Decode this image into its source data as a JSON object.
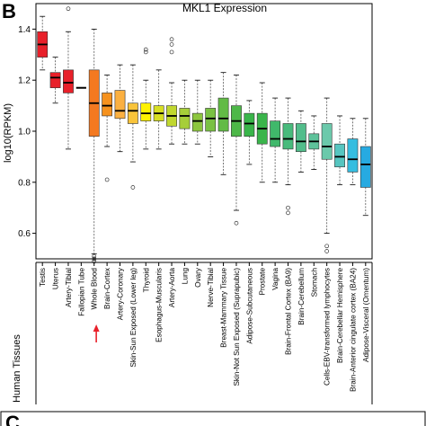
{
  "panel_letter": "B",
  "next_panel_letter": "C",
  "row_label": "Human Tissues",
  "chart_data": {
    "type": "boxplot",
    "title": "MKL1 Expression",
    "ylabel": "log10(RPKM)",
    "xlabel": "",
    "ylim": [
      0.5,
      1.5
    ],
    "yticks": [
      0.6,
      0.8,
      1.0,
      1.2,
      1.4
    ],
    "grid": false,
    "legend": "none",
    "categories": [
      "Testis",
      "Uterus",
      "Artery-Tibial",
      "Fallopian Tube",
      "Whole Blood",
      "Brain-Cortex",
      "Artery-Coronary",
      "Skin-Sun Exposed (Lower leg)",
      "Thyroid",
      "Esophagus-Muscularis",
      "Artery-Aorta",
      "Lung",
      "Ovary",
      "Nerve-Tibial",
      "Breast-Mammary Tissue",
      "Skin-Not Sun Exposed (Suprapubic)",
      "Adipose-Subcutaneous",
      "Prostate",
      "Vagina",
      "Brain-Frontal Cortex (BA9)",
      "Brain-Cerebellum",
      "Stomach",
      "Cells-EBV-transformed lymphocytes",
      "Brain-Cerebellar Hemisphere",
      "Brain-Anterior cingulate cortex (BA24)",
      "Adipose-Visceral (Omentum)"
    ],
    "boxes": [
      {
        "min": 1.24,
        "q1": 1.29,
        "median": 1.34,
        "q3": 1.39,
        "max": 1.45,
        "outliers": [],
        "color": "#e8202a"
      },
      {
        "min": 1.11,
        "q1": 1.17,
        "median": 1.21,
        "q3": 1.23,
        "max": 1.29,
        "outliers": [],
        "color": "#e8202a"
      },
      {
        "min": 0.93,
        "q1": 1.15,
        "median": 1.19,
        "q3": 1.24,
        "max": 1.39,
        "outliers": [
          1.48
        ],
        "color": "#e8202a"
      },
      {
        "min": null,
        "q1": null,
        "median": 1.17,
        "q3": null,
        "max": null,
        "outliers": [],
        "color": "#000000"
      },
      {
        "min": 0.52,
        "q1": 0.98,
        "median": 1.11,
        "q3": 1.24,
        "max": 1.4,
        "outliers": [
          0.51,
          0.5,
          0.49,
          0.5,
          0.5
        ],
        "color": "#f47920"
      },
      {
        "min": 0.94,
        "q1": 1.06,
        "median": 1.1,
        "q3": 1.15,
        "max": 1.22,
        "outliers": [
          0.81
        ],
        "color": "#f6921e"
      },
      {
        "min": 0.92,
        "q1": 1.05,
        "median": 1.08,
        "q3": 1.16,
        "max": 1.26,
        "outliers": [],
        "color": "#fbb040"
      },
      {
        "min": 0.88,
        "q1": 1.03,
        "median": 1.08,
        "q3": 1.11,
        "max": 1.26,
        "outliers": [
          0.78
        ],
        "color": "#f9c43a"
      },
      {
        "min": 0.93,
        "q1": 1.04,
        "median": 1.07,
        "q3": 1.11,
        "max": 1.2,
        "outliers": [
          1.32,
          1.31
        ],
        "color": "#fff200"
      },
      {
        "min": 0.93,
        "q1": 1.04,
        "median": 1.07,
        "q3": 1.1,
        "max": 1.24,
        "outliers": [],
        "color": "#d7df23"
      },
      {
        "min": 0.95,
        "q1": 1.02,
        "median": 1.06,
        "q3": 1.1,
        "max": 1.19,
        "outliers": [
          1.36,
          1.34,
          1.31
        ],
        "color": "#c0d72f"
      },
      {
        "min": 0.95,
        "q1": 1.01,
        "median": 1.06,
        "q3": 1.09,
        "max": 1.2,
        "outliers": [],
        "color": "#a6ce39"
      },
      {
        "min": 0.95,
        "q1": 1.0,
        "median": 1.04,
        "q3": 1.07,
        "max": 1.2,
        "outliers": [],
        "color": "#8dc63f"
      },
      {
        "min": 0.9,
        "q1": 1.0,
        "median": 1.05,
        "q3": 1.09,
        "max": 1.2,
        "outliers": [],
        "color": "#7ac143"
      },
      {
        "min": 0.83,
        "q1": 1.0,
        "median": 1.05,
        "q3": 1.13,
        "max": 1.23,
        "outliers": [],
        "color": "#62bb46"
      },
      {
        "min": 0.69,
        "q1": 0.98,
        "median": 1.04,
        "q3": 1.1,
        "max": 1.22,
        "outliers": [
          0.64
        ],
        "color": "#4db848"
      },
      {
        "min": 0.87,
        "q1": 0.98,
        "median": 1.03,
        "q3": 1.07,
        "max": 1.12,
        "outliers": [],
        "color": "#39b54a"
      },
      {
        "min": 0.8,
        "q1": 0.95,
        "median": 1.01,
        "q3": 1.07,
        "max": 1.19,
        "outliers": [],
        "color": "#3ab54b"
      },
      {
        "min": 0.8,
        "q1": 0.94,
        "median": 0.97,
        "q3": 1.04,
        "max": 1.13,
        "outliers": [],
        "color": "#40b86b"
      },
      {
        "min": 0.79,
        "q1": 0.93,
        "median": 0.97,
        "q3": 1.03,
        "max": 1.13,
        "outliers": [
          0.7,
          0.68
        ],
        "color": "#48bb7c"
      },
      {
        "min": 0.84,
        "q1": 0.92,
        "median": 0.96,
        "q3": 1.03,
        "max": 1.08,
        "outliers": [],
        "color": "#52bd8b"
      },
      {
        "min": 0.85,
        "q1": 0.93,
        "median": 0.96,
        "q3": 0.99,
        "max": 1.06,
        "outliers": [],
        "color": "#5ec29a"
      },
      {
        "min": 0.6,
        "q1": 0.89,
        "median": 0.94,
        "q3": 1.03,
        "max": 1.13,
        "outliers": [
          0.55,
          0.53
        ],
        "color": "#6bc9ab"
      },
      {
        "min": 0.79,
        "q1": 0.86,
        "median": 0.9,
        "q3": 0.95,
        "max": 1.06,
        "outliers": [],
        "color": "#56c5c0"
      },
      {
        "min": 0.79,
        "q1": 0.84,
        "median": 0.89,
        "q3": 0.97,
        "max": 1.05,
        "outliers": [],
        "color": "#35bde0"
      },
      {
        "min": 0.67,
        "q1": 0.78,
        "median": 0.87,
        "q3": 0.94,
        "max": 1.05,
        "outliers": [],
        "color": "#27aae1"
      }
    ],
    "highlight_category": "Brain-Cortex",
    "highlight_color": "#e8202a"
  }
}
